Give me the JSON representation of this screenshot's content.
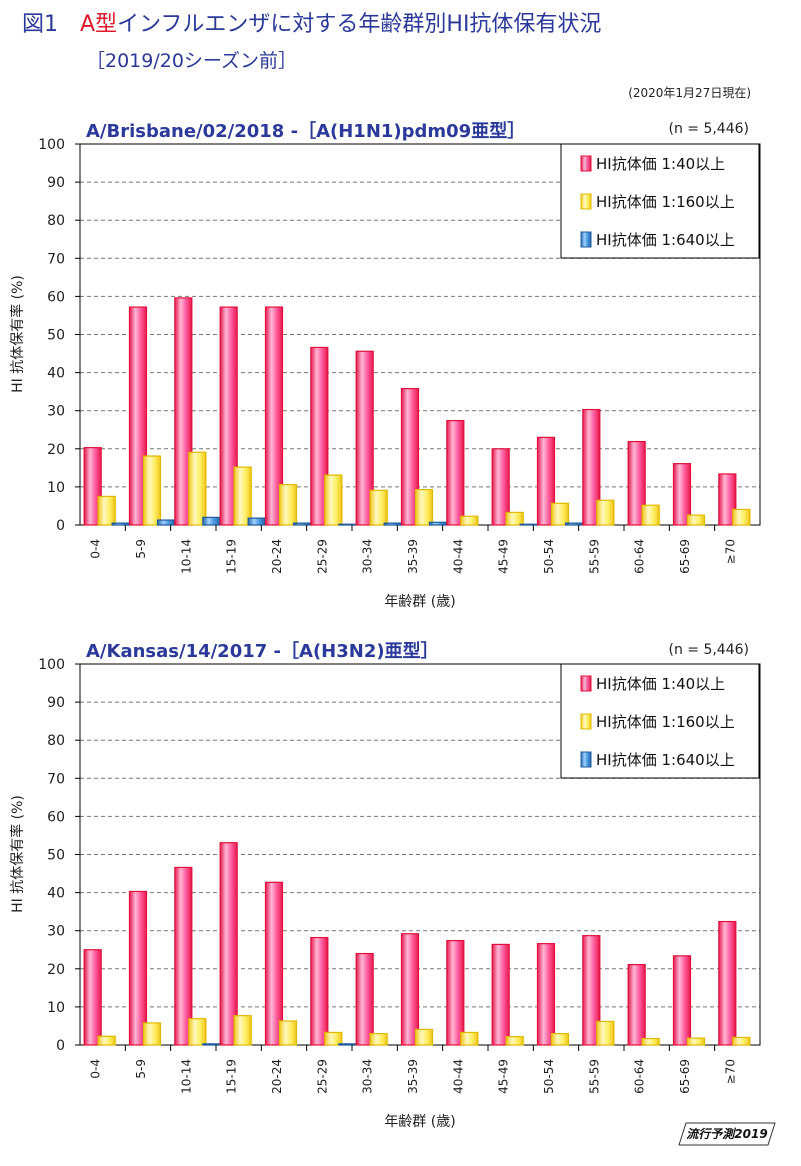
{
  "figure": {
    "number": "図1",
    "title_red": "A型",
    "title_rest": "インフルエンザに対する年齢群別HI抗体保有状況",
    "subtitle": "［2019/20シーズン前］",
    "date_note": "(2020年1月27日現在)",
    "badge": "流行予測2019"
  },
  "colors": {
    "red": "#e8194e",
    "yellow": "#f0d020",
    "blue": "#2d7fc6",
    "title_blue": "#2b3a9a"
  },
  "chart_data": [
    {
      "type": "bar",
      "title": "A/Brisbane/02/2018 -［A(H1N1)pdm09亜型］",
      "n_label": "(n = 5,446)",
      "xlabel": "年齢群 (歳)",
      "ylabel": "HI 抗体保有率 (%)",
      "ylim": [
        0,
        100
      ],
      "yticks": [
        "0",
        "10",
        "20",
        "30",
        "40",
        "50",
        "60",
        "70",
        "80",
        "90",
        "100"
      ],
      "grid": true,
      "legend_position": "top-right",
      "categories": [
        "0-4",
        "5-9",
        "10-14",
        "15-19",
        "20-24",
        "25-29",
        "30-34",
        "35-39",
        "40-44",
        "45-49",
        "50-54",
        "55-59",
        "60-64",
        "65-69",
        "≥70"
      ],
      "series": [
        {
          "name": "HI抗体価 1:40以上",
          "color": "red",
          "values": [
            20.3,
            57.2,
            59.6,
            57.2,
            57.2,
            46.6,
            45.6,
            35.8,
            27.4,
            20.0,
            23.0,
            30.3,
            21.9,
            16.1,
            13.4
          ]
        },
        {
          "name": "HI抗体価 1:160以上",
          "color": "yellow",
          "values": [
            7.5,
            18.1,
            19.1,
            15.2,
            10.6,
            13.1,
            9.1,
            9.3,
            2.3,
            3.3,
            5.7,
            6.5,
            5.2,
            2.6,
            4.1
          ]
        },
        {
          "name": "HI抗体価 1:640以上",
          "color": "blue",
          "values": [
            0.5,
            1.3,
            2.0,
            1.8,
            0.5,
            0.2,
            0.5,
            0.7,
            0.0,
            0.2,
            0.5,
            0.0,
            0.0,
            0.0,
            0.0
          ]
        }
      ]
    },
    {
      "type": "bar",
      "title": "A/Kansas/14/2017 -［A(H3N2)亜型］",
      "n_label": "(n = 5,446)",
      "xlabel": "年齢群 (歳)",
      "ylabel": "HI 抗体保有率 (%)",
      "ylim": [
        0,
        100
      ],
      "yticks": [
        "0",
        "10",
        "20",
        "30",
        "40",
        "50",
        "60",
        "70",
        "80",
        "90",
        "100"
      ],
      "grid": true,
      "legend_position": "top-right",
      "categories": [
        "0-4",
        "5-9",
        "10-14",
        "15-19",
        "20-24",
        "25-29",
        "30-34",
        "35-39",
        "40-44",
        "45-49",
        "50-54",
        "55-59",
        "60-64",
        "65-69",
        "≥70"
      ],
      "series": [
        {
          "name": "HI抗体価 1:40以上",
          "color": "red",
          "values": [
            25.0,
            40.3,
            46.6,
            53.1,
            42.7,
            28.2,
            24.0,
            29.2,
            27.4,
            26.4,
            26.6,
            28.7,
            21.1,
            23.4,
            32.4
          ]
        },
        {
          "name": "HI抗体価 1:160以上",
          "color": "yellow",
          "values": [
            2.3,
            5.8,
            6.9,
            7.7,
            6.3,
            3.3,
            3.0,
            4.1,
            3.3,
            2.2,
            3.0,
            6.2,
            1.7,
            1.8,
            2.0
          ]
        },
        {
          "name": "HI抗体価 1:640以上",
          "color": "blue",
          "values": [
            0.0,
            0.0,
            0.3,
            0.0,
            0.0,
            0.3,
            0.0,
            0.0,
            0.0,
            0.0,
            0.0,
            0.0,
            0.0,
            0.0,
            0.0
          ]
        }
      ]
    }
  ]
}
